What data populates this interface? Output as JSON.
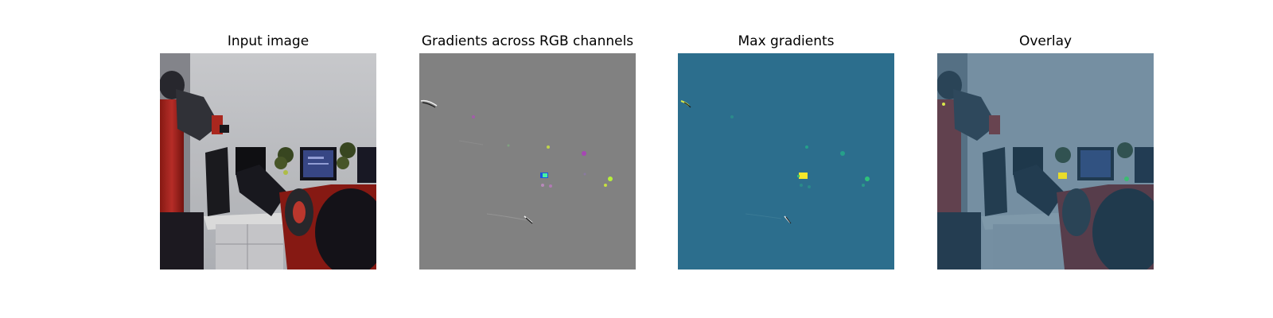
{
  "figure": {
    "panels": [
      {
        "title": "Input image"
      },
      {
        "title": "Gradients across RGB channels"
      },
      {
        "title": "Max gradients"
      },
      {
        "title": "Overlay"
      }
    ]
  }
}
